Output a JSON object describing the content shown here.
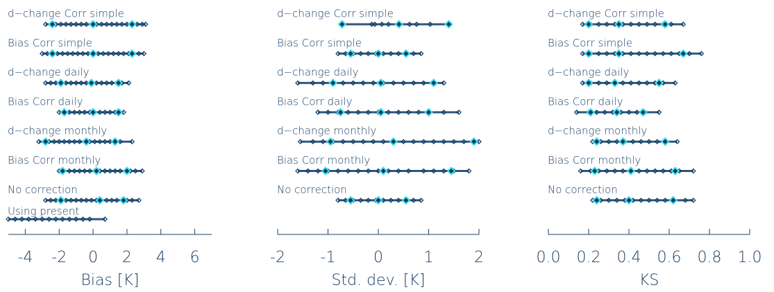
{
  "chart_data": [
    {
      "type": "strip",
      "xlabel": "Bias [K]",
      "xlim": [
        -5,
        7
      ],
      "xticks": [
        -4,
        -2,
        0,
        2,
        4,
        6
      ],
      "color": "#0b3a66",
      "highlight_color": "#3fe0ea",
      "categories": [
        "d−change Corr simple",
        "Bias Corr simple",
        "d−change daily",
        "Bias Corr daily",
        "d−change monthly",
        "Bias Corr monthly",
        "No correction",
        "Using present"
      ],
      "values": [
        [
          -2.8,
          -2.5,
          -2.2,
          -1.9,
          -1.6,
          -1.3,
          -1,
          -0.7,
          -0.4,
          -0.1,
          0.2,
          0.5,
          0.8,
          1.1,
          1.4,
          1.7,
          2,
          2.3,
          2.6,
          2.9,
          3.1
        ],
        [
          -3,
          -2.7,
          -2.4,
          -2.1,
          -1.8,
          -1.5,
          -1.2,
          -0.9,
          -0.6,
          -0.3,
          0,
          0.3,
          0.6,
          0.9,
          1.2,
          1.5,
          1.8,
          2.1,
          2.4,
          2.7,
          3
        ],
        [
          -2.8,
          -2.5,
          -2.2,
          -1.9,
          -1.6,
          -1.3,
          -1,
          -0.7,
          -0.4,
          -0.1,
          0.2,
          0.5,
          0.8,
          1.1,
          1.4,
          1.7,
          2.1
        ],
        [
          -2,
          -1.7,
          -1.4,
          -1.1,
          -0.8,
          -0.5,
          -0.2,
          0.1,
          0.4,
          0.7,
          1,
          1.3,
          1.6,
          1.8
        ],
        [
          -3.2,
          -2.9,
          -2.6,
          -2.3,
          -2,
          -1.7,
          -1.4,
          -1.1,
          -0.8,
          -0.5,
          -0.2,
          0.1,
          0.4,
          0.7,
          1,
          1.3,
          1.6,
          2.3
        ],
        [
          -2,
          -1.7,
          -1.4,
          -1.1,
          -0.8,
          -0.5,
          -0.2,
          0.1,
          0.4,
          0.7,
          1,
          1.3,
          1.6,
          1.9,
          2.2,
          2.5,
          2.9
        ],
        [
          -2.8,
          -2.5,
          -2.2,
          -1.9,
          -1.6,
          -1.3,
          -1,
          -0.7,
          -0.4,
          -0.1,
          0.2,
          0.5,
          0.8,
          1.1,
          1.4,
          1.7,
          2,
          2.3,
          2.7
        ],
        [
          -5,
          -4.6,
          -4.2,
          -3.8,
          -3.4,
          -3,
          -2.6,
          -2.2,
          -1.8,
          -1.4,
          -1,
          -0.6,
          -0.2,
          0.7
        ]
      ],
      "highlights": [
        [
          -2.4,
          0,
          2.3
        ],
        [
          -2.4,
          0,
          2.3
        ],
        [
          -1.9,
          -0.1,
          1.5
        ],
        [
          -1.7,
          0,
          1.5
        ],
        [
          -2.8,
          -0.4,
          1.3
        ],
        [
          -1.8,
          0.2,
          2
        ],
        [
          -1.9,
          0.4,
          1.8
        ],
        []
      ]
    },
    {
      "type": "strip",
      "xlabel": "Std. dev. [K]",
      "xlim": [
        -2,
        2
      ],
      "xticks": [
        -2,
        -1,
        0,
        1,
        2
      ],
      "color": "#0b3a66",
      "highlight_color": "#3fe0ea",
      "categories": [
        "d−change Corr simple",
        "Bias Corr simple",
        "d−change daily",
        "Bias Corr daily",
        "d−change monthly",
        "Bias Corr monthly",
        "No correction"
      ],
      "values": [
        [
          -0.72,
          -0.13,
          -0.07,
          0.07,
          0.2,
          0.41,
          0.62,
          0.76,
          1.03,
          1.38,
          1.41
        ],
        [
          -0.8,
          -0.65,
          -0.5,
          -0.35,
          -0.2,
          -0.05,
          0.1,
          0.25,
          0.4,
          0.55,
          0.7,
          0.85
        ],
        [
          -1.6,
          -1.3,
          -1.1,
          -0.9,
          -0.7,
          -0.5,
          -0.3,
          -0.1,
          0.1,
          0.3,
          0.5,
          0.7,
          0.9,
          1.1,
          1.3
        ],
        [
          -1.2,
          -1,
          -0.8,
          -0.6,
          -0.4,
          -0.2,
          0,
          0.2,
          0.4,
          0.6,
          0.8,
          1,
          1.3,
          1.6
        ],
        [
          -1.55,
          -1.3,
          -1.1,
          -0.9,
          -0.7,
          -0.5,
          -0.3,
          -0.1,
          0.1,
          0.3,
          0.5,
          0.7,
          0.9,
          1.1,
          1.3,
          1.5,
          1.7,
          2
        ],
        [
          -1.6,
          -1.4,
          -1.2,
          -1,
          -0.8,
          -0.6,
          -0.4,
          -0.2,
          0,
          0.2,
          0.4,
          0.6,
          0.9,
          1.1,
          1.3,
          1.5,
          1.8
        ],
        [
          -0.8,
          -0.65,
          -0.5,
          -0.35,
          -0.2,
          -0.05,
          0.1,
          0.25,
          0.4,
          0.55,
          0.7,
          0.85
        ]
      ],
      "highlights": [
        [
          -0.72,
          0.41,
          1.4
        ],
        [
          -0.55,
          0,
          0.55
        ],
        [
          -0.9,
          0.05,
          1.1
        ],
        [
          -0.75,
          0.05,
          1
        ],
        [
          -0.95,
          0.3,
          1.9
        ],
        [
          -1.05,
          0.1,
          1.45
        ],
        [
          -0.55,
          0,
          0.55
        ]
      ]
    },
    {
      "type": "strip",
      "xlabel": "KS",
      "xlim": [
        0,
        1
      ],
      "xticks": [
        {
          "value": 0,
          "label": "0.0"
        },
        0.2,
        0.4,
        0.6,
        0.8,
        {
          "value": 1,
          "label": "1.0"
        }
      ],
      "color": "#0b3a66",
      "highlight_color": "#3fe0ea",
      "categories": [
        "d−change Corr simple",
        "Bias Corr simple",
        "d−change daily",
        "Bias Corr daily",
        "d−change monthly",
        "Bias Corr monthly",
        "No correction"
      ],
      "values": [
        [
          0.17,
          0.21,
          0.25,
          0.29,
          0.33,
          0.37,
          0.41,
          0.45,
          0.49,
          0.53,
          0.57,
          0.61,
          0.67
        ],
        [
          0.17,
          0.21,
          0.25,
          0.29,
          0.33,
          0.37,
          0.41,
          0.45,
          0.49,
          0.53,
          0.57,
          0.61,
          0.65,
          0.7,
          0.76
        ],
        [
          0.17,
          0.21,
          0.25,
          0.29,
          0.33,
          0.37,
          0.41,
          0.45,
          0.49,
          0.53,
          0.57,
          0.63
        ],
        [
          0.14,
          0.2,
          0.24,
          0.28,
          0.32,
          0.36,
          0.4,
          0.44,
          0.48,
          0.55
        ],
        [
          0.22,
          0.26,
          0.3,
          0.34,
          0.38,
          0.42,
          0.46,
          0.5,
          0.54,
          0.58,
          0.64
        ],
        [
          0.16,
          0.21,
          0.25,
          0.29,
          0.33,
          0.37,
          0.41,
          0.45,
          0.49,
          0.53,
          0.57,
          0.61,
          0.65,
          0.72
        ],
        [
          0.22,
          0.26,
          0.3,
          0.34,
          0.38,
          0.42,
          0.46,
          0.5,
          0.54,
          0.58,
          0.62,
          0.68,
          0.72
        ]
      ],
      "highlights": [
        [
          0.2,
          0.35,
          0.58
        ],
        [
          0.2,
          0.35,
          0.67
        ],
        [
          0.2,
          0.33,
          0.55
        ],
        [
          0.21,
          0.34,
          0.47
        ],
        [
          0.24,
          0.37,
          0.58
        ],
        [
          0.23,
          0.41,
          0.63
        ],
        [
          0.24,
          0.4,
          0.62
        ]
      ]
    }
  ]
}
